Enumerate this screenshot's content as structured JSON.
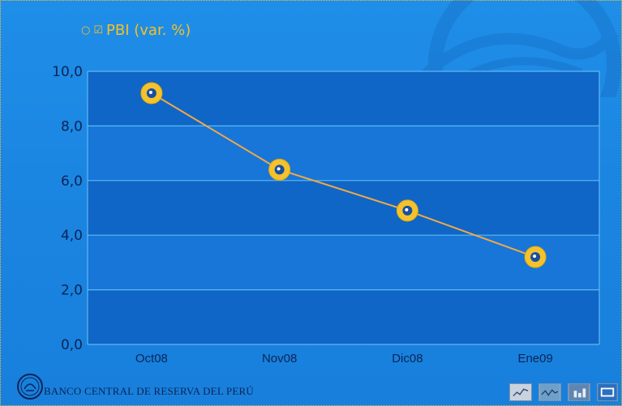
{
  "legend": {
    "icons": [
      "circle-icon",
      "checkbox-icon"
    ],
    "label": "PBI (var. %)"
  },
  "footer": {
    "institution": "BANCO CENTRAL DE RESERVA DEL PERÚ",
    "logo_icon": "bank-seal-icon"
  },
  "nav_buttons": [
    {
      "name": "line-chart-icon"
    },
    {
      "name": "wave-chart-icon"
    },
    {
      "name": "bar-chart-icon"
    },
    {
      "name": "window-icon"
    }
  ],
  "colors": {
    "background": "#1a84e0",
    "plot_band_dark": "#0f66c6",
    "plot_band_light": "#1776d8",
    "series": "#f0a946",
    "marker_outer": "#f4c22c",
    "text_dark": "#0b2456"
  },
  "chart_data": {
    "type": "line",
    "categories": [
      "Oct08",
      "Nov08",
      "Dic08",
      "Ene09"
    ],
    "series": [
      {
        "name": "PBI (var. %)",
        "values": [
          9.2,
          6.4,
          4.9,
          3.2
        ]
      }
    ],
    "ylim": [
      0,
      10
    ],
    "yticks": [
      "0,0",
      "2,0",
      "4,0",
      "6,0",
      "8,0",
      "10,0"
    ],
    "grid": true,
    "legend_position": "top-left"
  }
}
